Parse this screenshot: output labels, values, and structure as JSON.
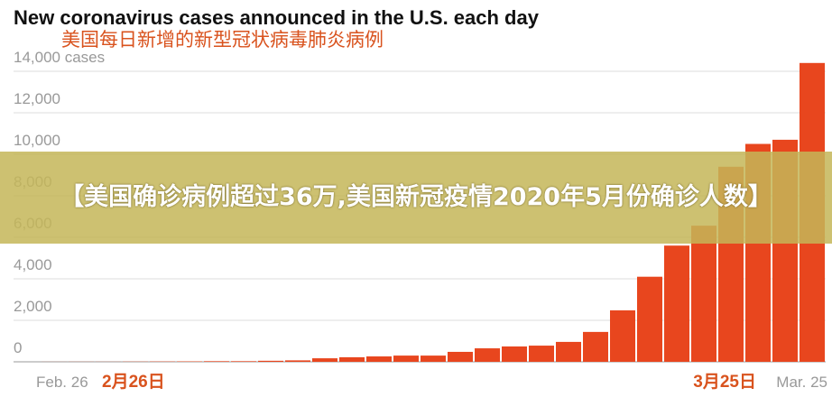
{
  "chart_data": {
    "type": "bar",
    "title": "New coronavirus cases announced in the U.S. each day",
    "subtitle": "美国每日新增的新型冠状病毒肺炎病例",
    "categories": [
      "Feb. 26",
      null,
      null,
      null,
      null,
      null,
      null,
      null,
      null,
      null,
      null,
      null,
      null,
      null,
      null,
      null,
      null,
      null,
      null,
      null,
      null,
      null,
      null,
      null,
      null,
      null,
      null,
      null,
      "Mar. 25"
    ],
    "category_annotations": [
      "2月26日",
      "3月25日"
    ],
    "values": [
      3,
      5,
      5,
      10,
      15,
      20,
      30,
      30,
      50,
      70,
      170,
      220,
      260,
      300,
      300,
      480,
      650,
      740,
      780,
      960,
      1440,
      2480,
      4100,
      5600,
      6560,
      9400,
      10500,
      10700,
      14400
    ],
    "color": "#e8461e",
    "annotation_color": "#d9531e",
    "ylim": [
      0,
      14000
    ],
    "yticks": [
      0,
      {
        "value": 2000,
        "label": "2,000"
      },
      {
        "value": 4000,
        "label": "4,000"
      },
      {
        "value": 6000,
        "label": "6,000"
      },
      {
        "value": 8000,
        "label": "8,000"
      },
      {
        "value": 10000,
        "label": "10,000"
      },
      {
        "value": 12000,
        "label": "12,000"
      },
      {
        "value": 14000,
        "label": "14,000 cases"
      }
    ],
    "grid": true
  },
  "banner": {
    "text": "【美国确诊病例超过36万,美国新冠疫情2020年5月份确诊人数】"
  }
}
